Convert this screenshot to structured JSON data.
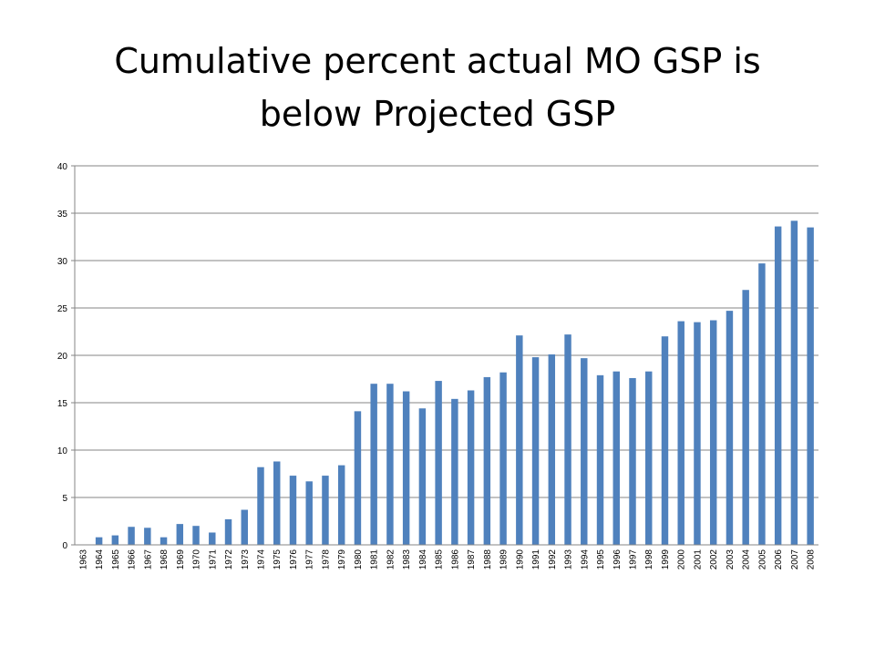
{
  "slide": {
    "title_line1": "Cumulative percent actual MO GSP is",
    "title_line2": "below Projected GSP"
  },
  "chart_data": {
    "type": "bar",
    "title": "Cumulative percent actual MO GSP is below Projected GSP",
    "xlabel": "",
    "ylabel": "",
    "ylim": [
      0,
      40
    ],
    "yticks": [
      0,
      5,
      10,
      15,
      20,
      25,
      30,
      35,
      40
    ],
    "grid": true,
    "bar_color": "#4F81BD",
    "categories": [
      "1963",
      "1964",
      "1965",
      "1966",
      "1967",
      "1968",
      "1969",
      "1970",
      "1971",
      "1972",
      "1973",
      "1974",
      "1975",
      "1976",
      "1977",
      "1978",
      "1979",
      "1980",
      "1981",
      "1982",
      "1983",
      "1984",
      "1985",
      "1986",
      "1987",
      "1988",
      "1989",
      "1990",
      "1991",
      "1992",
      "1993",
      "1994",
      "1995",
      "1996",
      "1997",
      "1998",
      "1999",
      "2000",
      "2001",
      "2002",
      "2003",
      "2004",
      "2005",
      "2006",
      "2007",
      "2008"
    ],
    "values": [
      0,
      0.8,
      1.0,
      1.9,
      1.8,
      0.8,
      2.2,
      2.0,
      1.3,
      2.7,
      3.7,
      8.2,
      8.8,
      7.3,
      6.7,
      7.3,
      8.4,
      14.1,
      17.0,
      17.0,
      16.2,
      14.4,
      17.3,
      15.4,
      16.3,
      17.7,
      18.2,
      22.1,
      19.8,
      20.1,
      22.2,
      19.7,
      17.9,
      18.3,
      17.6,
      18.3,
      22.0,
      23.6,
      23.5,
      23.7,
      24.7,
      26.9,
      29.7,
      33.6,
      34.2,
      33.5
    ]
  }
}
